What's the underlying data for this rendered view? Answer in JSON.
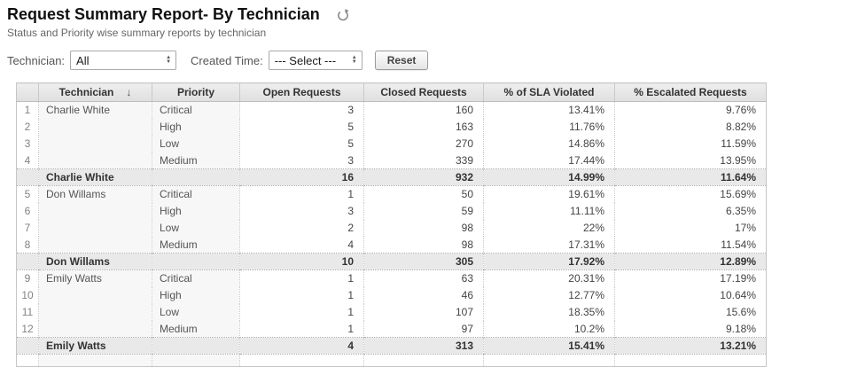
{
  "page": {
    "title": "Request Summary Report- By Technician",
    "subtitle": "Status and Priority wise summary reports by technician"
  },
  "filters": {
    "technician_label": "Technician:",
    "technician_value": "All",
    "created_time_label": "Created Time:",
    "created_time_value": "--- Select ---",
    "reset_label": "Reset"
  },
  "icons": {
    "refresh": "refresh-icon",
    "sort_descending": "↓",
    "select_spinner_up": "▲",
    "select_spinner_down": "▼"
  },
  "table": {
    "columns": [
      "Technician",
      "Priority",
      "Open Requests",
      "Closed Requests",
      "% of SLA Violated",
      "% Escalated Requests"
    ],
    "groups": [
      {
        "technician": "Charlie White",
        "rows": [
          {
            "num": "1",
            "priority": "Critical",
            "open": "3",
            "closed": "160",
            "sla": "13.41%",
            "escalated": "9.76%"
          },
          {
            "num": "2",
            "priority": "High",
            "open": "5",
            "closed": "163",
            "sla": "11.76%",
            "escalated": "8.82%"
          },
          {
            "num": "3",
            "priority": "Low",
            "open": "5",
            "closed": "270",
            "sla": "14.86%",
            "escalated": "11.59%"
          },
          {
            "num": "4",
            "priority": "Medium",
            "open": "3",
            "closed": "339",
            "sla": "17.44%",
            "escalated": "13.95%"
          }
        ],
        "summary": {
          "label": "Charlie White",
          "open": "16",
          "closed": "932",
          "sla": "14.99%",
          "escalated": "11.64%"
        }
      },
      {
        "technician": "Don Willams",
        "rows": [
          {
            "num": "5",
            "priority": "Critical",
            "open": "1",
            "closed": "50",
            "sla": "19.61%",
            "escalated": "15.69%"
          },
          {
            "num": "6",
            "priority": "High",
            "open": "3",
            "closed": "59",
            "sla": "11.11%",
            "escalated": "6.35%"
          },
          {
            "num": "7",
            "priority": "Low",
            "open": "2",
            "closed": "98",
            "sla": "22%",
            "escalated": "17%"
          },
          {
            "num": "8",
            "priority": "Medium",
            "open": "4",
            "closed": "98",
            "sla": "17.31%",
            "escalated": "11.54%"
          }
        ],
        "summary": {
          "label": "Don Willams",
          "open": "10",
          "closed": "305",
          "sla": "17.92%",
          "escalated": "12.89%"
        }
      },
      {
        "technician": "Emily Watts",
        "rows": [
          {
            "num": "9",
            "priority": "Critical",
            "open": "1",
            "closed": "63",
            "sla": "20.31%",
            "escalated": "17.19%"
          },
          {
            "num": "10",
            "priority": "High",
            "open": "1",
            "closed": "46",
            "sla": "12.77%",
            "escalated": "10.64%"
          },
          {
            "num": "11",
            "priority": "Low",
            "open": "1",
            "closed": "107",
            "sla": "18.35%",
            "escalated": "15.6%"
          },
          {
            "num": "12",
            "priority": "Medium",
            "open": "1",
            "closed": "97",
            "sla": "10.2%",
            "escalated": "9.18%"
          }
        ],
        "summary": {
          "label": "Emily Watts",
          "open": "4",
          "closed": "313",
          "sla": "15.41%",
          "escalated": "13.21%"
        }
      }
    ]
  }
}
